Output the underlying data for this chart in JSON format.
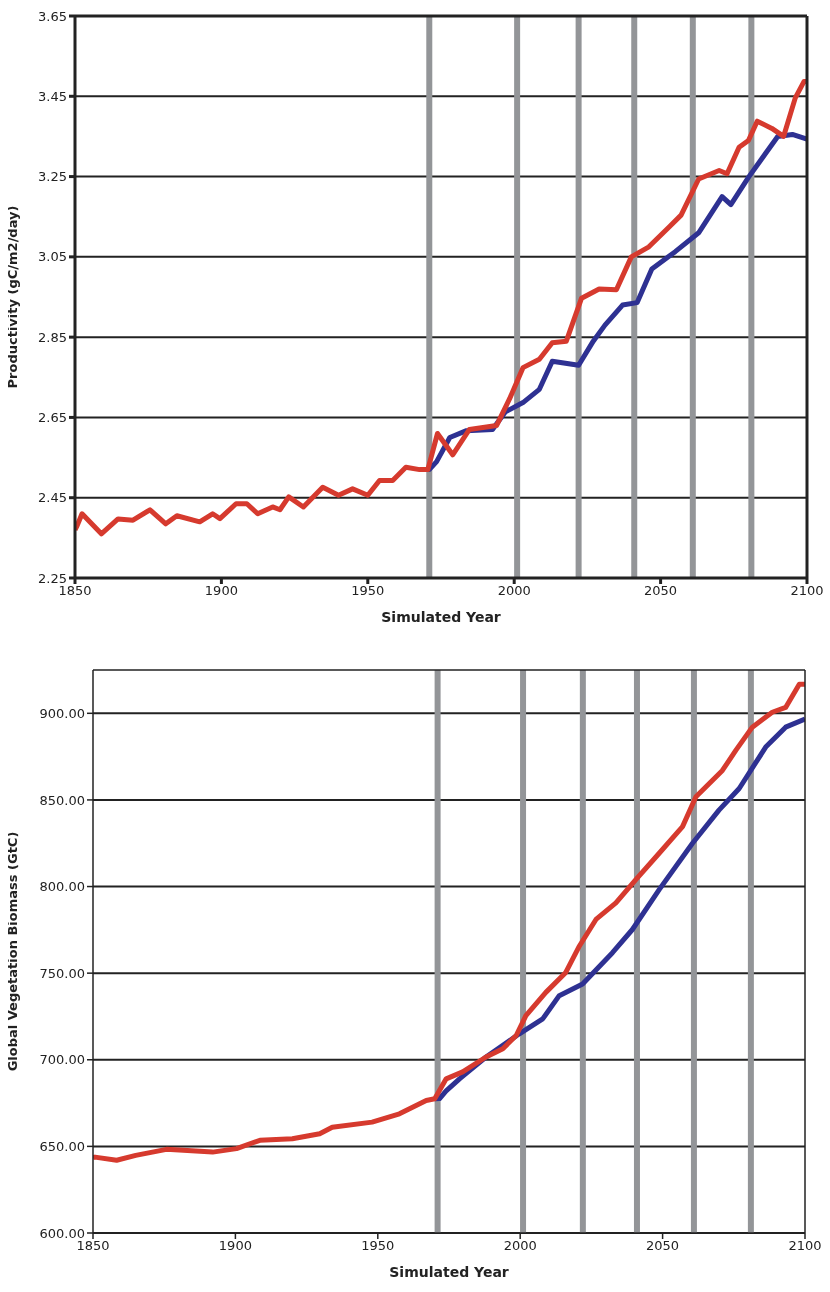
{
  "chart_data": [
    {
      "type": "line",
      "xlabel": "Simulated Year",
      "ylabel": "Productivity (gC/m2/day)",
      "xlim": [
        1850,
        2100
      ],
      "ylim": [
        2.25,
        3.65
      ],
      "xticks": [
        1850,
        1900,
        1950,
        2000,
        2050,
        2100
      ],
      "yticks": [
        2.25,
        2.45,
        2.65,
        2.85,
        3.05,
        3.25,
        3.45,
        3.65
      ],
      "grid": "y",
      "ref_lines": [
        {
          "axis": "x",
          "value": 1971,
          "color": "#939598"
        },
        {
          "axis": "x",
          "value": 2001,
          "color": "#939598"
        },
        {
          "axis": "x",
          "value": 2022,
          "color": "#939598"
        },
        {
          "axis": "x",
          "value": 2041,
          "color": "#939598"
        },
        {
          "axis": "x",
          "value": 2061,
          "color": "#939598"
        },
        {
          "axis": "x",
          "value": 2081,
          "color": "#939598"
        }
      ],
      "series": [
        {
          "color": "#2e3192",
          "x": [
            1970,
            1971,
            1973.5,
            1978,
            1983.7,
            1992.6,
            1997,
            2003,
            2008.6,
            2013,
            2022,
            2027,
            2031,
            2037,
            2042,
            2047,
            2055,
            2063,
            2071,
            2074,
            2080,
            2090,
            2095,
            2100
          ],
          "values": [
            2.52,
            2.52,
            2.54,
            2.6,
            2.617,
            2.62,
            2.664,
            2.687,
            2.72,
            2.79,
            2.78,
            2.84,
            2.88,
            2.93,
            2.936,
            3.02,
            3.063,
            3.11,
            3.2,
            3.18,
            3.248,
            3.35,
            3.355,
            3.343
          ]
        },
        {
          "color": "#d63a2e",
          "x": [
            1850,
            1850.7,
            1852.4,
            1859,
            1864.7,
            1869.8,
            1875.6,
            1881,
            1884.8,
            1892.6,
            1897,
            1899.5,
            1905,
            1908.7,
            1912.4,
            1917.5,
            1920,
            1923,
            1928,
            1934.6,
            1940,
            1944.8,
            1950,
            1954,
            1958.5,
            1963,
            1967.7,
            1970.5,
            1973.8,
            1979,
            1984.7,
            1994,
            1998.4,
            2003,
            2008.6,
            2013,
            2017.8,
            2023,
            2029,
            2034.9,
            2040,
            2046,
            2053,
            2057,
            2063,
            2070,
            2072.7,
            2076.8,
            2080,
            2083,
            2088,
            2092,
            2096,
            2099,
            2100
          ],
          "values": [
            2.37,
            2.38,
            2.41,
            2.36,
            2.397,
            2.394,
            2.42,
            2.385,
            2.405,
            2.39,
            2.41,
            2.398,
            2.435,
            2.435,
            2.41,
            2.427,
            2.42,
            2.452,
            2.427,
            2.476,
            2.456,
            2.472,
            2.456,
            2.493,
            2.493,
            2.526,
            2.52,
            2.52,
            2.61,
            2.557,
            2.62,
            2.63,
            2.696,
            2.774,
            2.795,
            2.836,
            2.84,
            2.947,
            2.97,
            2.968,
            3.05,
            3.075,
            3.125,
            3.154,
            3.244,
            3.265,
            3.257,
            3.323,
            3.34,
            3.388,
            3.37,
            3.35,
            3.446,
            3.487,
            3.487
          ]
        }
      ]
    },
    {
      "type": "line",
      "xlabel": "Simulated Year",
      "ylabel": "Global Vegetation Biomass (GtC)",
      "xlim": [
        1850,
        2100
      ],
      "ylim": [
        600,
        925
      ],
      "xticks": [
        1850,
        1900,
        1950,
        2000,
        2050,
        2100
      ],
      "yticks": [
        {
          "value": 600,
          "label": "600.00"
        },
        {
          "value": 650,
          "label": "650.00"
        },
        {
          "value": 700,
          "label": "700.00"
        },
        {
          "value": 750,
          "label": "750.00"
        },
        {
          "value": 800,
          "label": "800.00"
        },
        {
          "value": 850,
          "label": "850.00"
        },
        {
          "value": 900,
          "label": "900.00"
        }
      ],
      "grid": "y",
      "ref_lines": [
        {
          "axis": "x",
          "value": 1971,
          "color": "#939598"
        },
        {
          "axis": "x",
          "value": 2001,
          "color": "#939598"
        },
        {
          "axis": "x",
          "value": 2022,
          "color": "#939598"
        },
        {
          "axis": "x",
          "value": 2041,
          "color": "#939598"
        },
        {
          "axis": "x",
          "value": 2061,
          "color": "#939598"
        },
        {
          "axis": "x",
          "value": 2081,
          "color": "#939598"
        }
      ],
      "series": [
        {
          "color": "#2e3192",
          "x": [
            1970,
            1971.7,
            1974,
            1978.7,
            1988,
            1999.7,
            2007.9,
            2013.7,
            2021.9,
            2032.4,
            2039.4,
            2048.8,
            2060.5,
            2069.8,
            2076.9,
            2086.2,
            2093.2,
            2100
          ],
          "values": [
            677.5,
            677.6,
            682,
            689,
            701.6,
            715,
            723.6,
            737,
            743.7,
            761.8,
            775.2,
            798.2,
            825,
            844.1,
            856.6,
            880.5,
            892,
            896.7
          ]
        },
        {
          "color": "#d63a2e",
          "x": [
            1850,
            1850.7,
            1858.3,
            1865,
            1875.8,
            1892,
            1900.4,
            1908.6,
            1920,
            1929.6,
            1934,
            1948,
            1957.6,
            1967,
            1970,
            1974,
            1979.8,
            1988,
            1993.9,
            1998.6,
            2002,
            2009,
            2016,
            2020.8,
            2026.6,
            2033.6,
            2040.6,
            2048.8,
            2057,
            2061.7,
            2071,
            2075.7,
            2081.5,
            2088.5,
            2093.2,
            2098,
            2100
          ],
          "values": [
            643.5,
            643.8,
            642,
            644.8,
            648.3,
            646.7,
            648.7,
            653.5,
            654.4,
            657.3,
            661,
            664,
            668.8,
            676.5,
            677.5,
            689,
            693,
            701.6,
            706.4,
            714,
            725.5,
            738.9,
            750.4,
            765.7,
            781,
            790.6,
            804,
            819.2,
            834.6,
            851.8,
            867,
            878.6,
            892,
            900.6,
            903.4,
            916.8,
            916.8
          ]
        }
      ]
    }
  ]
}
